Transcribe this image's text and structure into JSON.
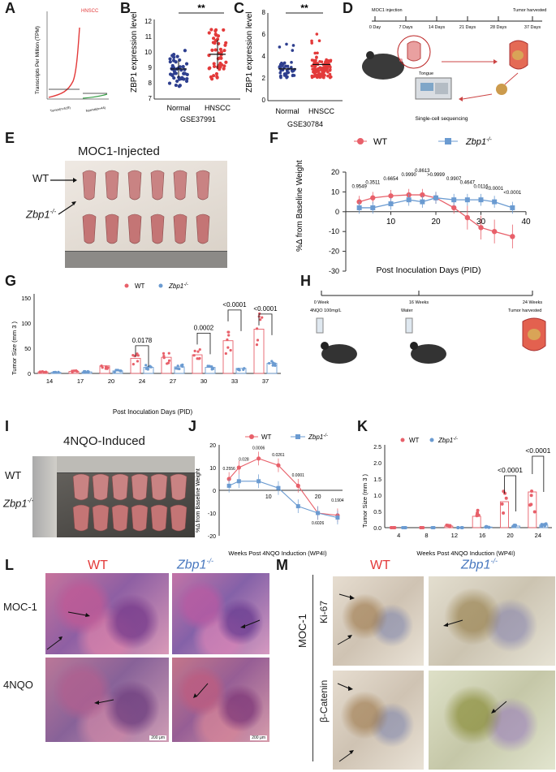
{
  "panels": {
    "A": {
      "letter": "A",
      "title": "HNSCC",
      "ylabel": "Transcripts Per Million (TPM)",
      "xlabel1": "Tumor(n=519)",
      "xlabel2": "Normal(n=44)"
    },
    "B": {
      "letter": "B",
      "ylabel": "ZBP1 expression level",
      "sig": "**",
      "groups": [
        "Normal",
        "HNSCC"
      ],
      "dataset": "GSE37991",
      "yticks": [
        "7",
        "8",
        "9",
        "10",
        "11",
        "12"
      ]
    },
    "C": {
      "letter": "C",
      "ylabel": "ZBP1 expression level",
      "sig": "**",
      "groups": [
        "Normal",
        "HNSCC"
      ],
      "dataset": "GSE30784",
      "yticks": [
        "0",
        "2",
        "4",
        "6",
        "8"
      ]
    },
    "D": {
      "letter": "D",
      "injection": "MOC1 injection",
      "harvest": "Tumor harvested",
      "days": [
        "0 Day",
        "7 Days",
        "14 Days",
        "21 Days",
        "28 Days",
        "37 Days"
      ],
      "organ": "Tongue",
      "seq": "Single-cell sequencing"
    },
    "E": {
      "letter": "E",
      "title": "MOC1-Injected",
      "wt": "WT",
      "ko": "Zbp1",
      "sup": "-/-"
    },
    "F": {
      "letter": "F",
      "legend_wt": "WT",
      "legend_ko": "Zbp1",
      "sup": "-/-",
      "ylabel": "%Δ from Baseline Weight",
      "xlabel": "Post Inoculation Days (PID)",
      "pvals": [
        "0.9549",
        "0.3511",
        "0.6654",
        "0.9990",
        "0.8613",
        ">0.9999",
        "0.9907",
        "0.4647",
        "0.0116",
        "<0.0001",
        "<0.0001"
      ]
    },
    "G": {
      "letter": "G",
      "legend_wt": "WT",
      "legend_ko": "Zbp1",
      "sup": "-/-",
      "ylabel": "Tumor Size (mm 3 )",
      "xlabel": "Post Inoculation Days (PID)",
      "pvals": [
        "0.0178",
        "0.0002",
        "<0.0001",
        "<0.0001"
      ]
    },
    "H": {
      "letter": "H",
      "t0": "0 Week",
      "t1": "16 Weeks",
      "t2": "24 Weeks",
      "treat0": "4NQO 100mg/L",
      "treat1": "Water",
      "harvest": "Tumor harvested"
    },
    "I": {
      "letter": "I",
      "title": "4NQO-Induced",
      "wt": "WT",
      "ko": "Zbp1",
      "sup": "-/-"
    },
    "J": {
      "letter": "J",
      "legend_wt": "WT",
      "legend_ko": "Zbp1",
      "sup": "-/-",
      "ylabel": "%Δ from Baseline Weight",
      "xlabel": "Weeks Post 4NQO Induction (WP4I)",
      "pvals": [
        "0.2556",
        "0.028",
        "0.0006",
        "0.0261",
        "0.0001",
        "0.6026",
        "0.1904"
      ]
    },
    "K": {
      "letter": "K",
      "legend_wt": "WT",
      "legend_ko": "Zbp1",
      "sup": "-/-",
      "ylabel": "Tumor Size (mm 3 )",
      "xlabel": "Weeks Post 4NQO Induction (WP4I)",
      "pvals": [
        "<0.0001",
        "<0.0001"
      ]
    },
    "L": {
      "letter": "L",
      "wt": "WT",
      "ko": "Zbp1",
      "sup": "-/-",
      "row1": "MOC-1",
      "row2": "4NQO",
      "scale1": "200 μm",
      "scale2": "200 μm"
    },
    "M": {
      "letter": "M",
      "wt": "WT",
      "ko": "Zbp1",
      "sup": "-/-",
      "group": "MOC-1",
      "row1": "Ki-67",
      "row2": "β-Catenin"
    }
  },
  "colors": {
    "wt": "#e8606a",
    "ko": "#6b9bd1",
    "navy": "#2e3f8f",
    "red": "#e33a3a"
  },
  "chart_data": [
    {
      "id": "F",
      "type": "line",
      "title": "",
      "xlabel": "Post Inoculation Days (PID)",
      "ylabel": "%Δ from Baseline Weight",
      "xlim": [
        0,
        40
      ],
      "ylim": [
        -30,
        20
      ],
      "series": [
        {
          "name": "WT",
          "x": [
            3,
            6,
            10,
            14,
            17,
            20,
            24,
            27,
            30,
            33,
            37
          ],
          "y": [
            5,
            7,
            8,
            8.5,
            8.5,
            7,
            2,
            -3,
            -8,
            -10,
            -12.5
          ]
        },
        {
          "name": "Zbp1-/-",
          "x": [
            3,
            6,
            10,
            14,
            17,
            20,
            24,
            27,
            30,
            33,
            37
          ],
          "y": [
            2,
            2,
            4,
            6,
            5,
            7,
            6,
            6,
            6,
            5,
            2
          ]
        }
      ]
    },
    {
      "id": "G",
      "type": "bar",
      "xlabel": "Post Inoculation Days (PID)",
      "ylabel": "Tumor Size (mm 3 )",
      "categories": [
        "14",
        "17",
        "20",
        "24",
        "27",
        "30",
        "33",
        "37"
      ],
      "ylim": [
        0,
        150
      ],
      "series": [
        {
          "name": "WT",
          "values": [
            3,
            4,
            15,
            30,
            32,
            37,
            65,
            88
          ]
        },
        {
          "name": "Zbp1-/-",
          "values": [
            2,
            3,
            5,
            12,
            13,
            12,
            10,
            20
          ]
        }
      ]
    },
    {
      "id": "J",
      "type": "line",
      "xlabel": "Weeks Post 4NQO Induction (WP4I)",
      "ylabel": "%Δ from Baseline Weight",
      "xlim": [
        0,
        25
      ],
      "ylim": [
        -20,
        20
      ],
      "series": [
        {
          "name": "WT",
          "x": [
            2,
            4,
            8,
            12,
            16,
            20,
            24
          ],
          "y": [
            5,
            10,
            14,
            11,
            2,
            -10,
            -11
          ]
        },
        {
          "name": "Zbp1-/-",
          "x": [
            2,
            4,
            8,
            12,
            16,
            20,
            24
          ],
          "y": [
            2,
            4,
            4,
            1,
            -7,
            -10,
            -12
          ]
        }
      ]
    },
    {
      "id": "K",
      "type": "bar",
      "xlabel": "Weeks Post 4NQO Induction (WP4I)",
      "ylabel": "Tumor Size (mm 3 )",
      "categories": [
        "4",
        "8",
        "12",
        "16",
        "20",
        "24"
      ],
      "ylim": [
        0,
        2.5
      ],
      "series": [
        {
          "name": "WT",
          "values": [
            0,
            0,
            0.05,
            0.35,
            0.8,
            1.1
          ]
        },
        {
          "name": "Zbp1-/-",
          "values": [
            0,
            0,
            0,
            0.02,
            0.05,
            0.08
          ]
        }
      ]
    }
  ]
}
